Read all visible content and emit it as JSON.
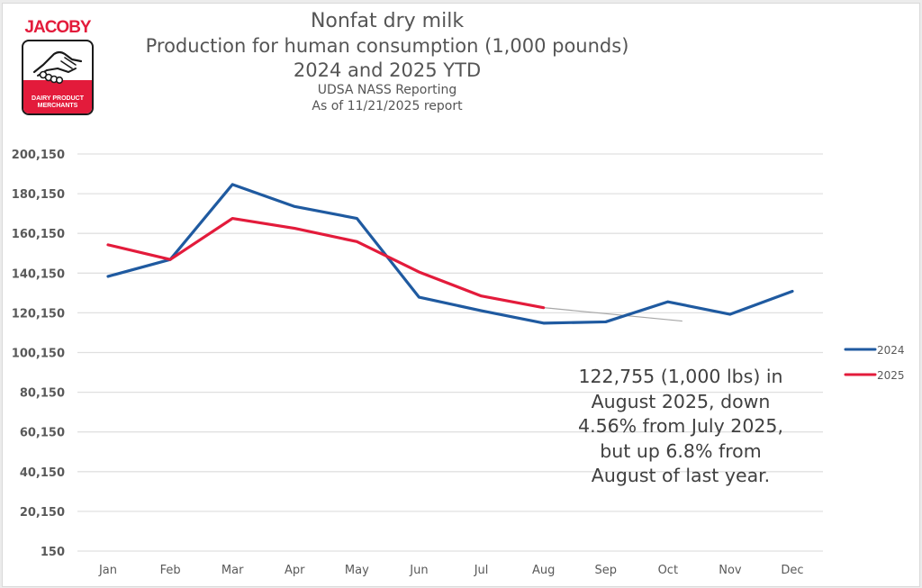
{
  "logo": {
    "brand": "JACOBY",
    "tagline_line1": "DAIRY PRODUCT",
    "tagline_line2": "MERCHANTS",
    "icon": "handshake-icon"
  },
  "colors": {
    "series_2024": "#1f5aa0",
    "series_2025": "#e31b3b",
    "trendline": "#a6a6a6",
    "gridline": "#e0e0e0",
    "text": "#595959"
  },
  "chart_data": {
    "type": "line",
    "title": "Nonfat dry milk",
    "subtitle_lines": [
      "Production for human consumption (1,000 pounds)",
      "2024 and 2025 YTD",
      "UDSA NASS Reporting",
      "As of 11/21/2025 report"
    ],
    "xlabel": "",
    "ylabel": "",
    "categories": [
      "Jan",
      "Feb",
      "Mar",
      "Apr",
      "May",
      "Jun",
      "Jul",
      "Aug",
      "Sep",
      "Oct",
      "Nov",
      "Dec"
    ],
    "series": [
      {
        "name": "2024",
        "color": "#1f5aa0",
        "values": [
          138500,
          147000,
          184800,
          173700,
          167700,
          128000,
          121200,
          114950,
          115600,
          125700,
          119400,
          131000
        ]
      },
      {
        "name": "2025",
        "color": "#e31b3b",
        "values": [
          154400,
          147000,
          167700,
          162700,
          156000,
          140700,
          128620,
          122755,
          null,
          null,
          null,
          null
        ]
      }
    ],
    "trendline": {
      "series": "2025",
      "from_category": "Aug",
      "to_category": "Oct",
      "values": [
        122755,
        116000
      ],
      "color": "#a6a6a6"
    },
    "yticks": [
      "150",
      "20,150",
      "40,150",
      "60,150",
      "80,150",
      "100,150",
      "120,150",
      "140,150",
      "160,150",
      "180,150",
      "200,150"
    ],
    "ytick_values": [
      150,
      20150,
      40150,
      60150,
      80150,
      100150,
      120150,
      140150,
      160150,
      180150,
      200150
    ],
    "ylim": [
      150,
      200150
    ],
    "grid": true,
    "legend": {
      "placement": "right",
      "entries": [
        "2024",
        "2025"
      ]
    },
    "annotation": {
      "lines": [
        "122,755 (1,000 lbs) in",
        "August 2025, down",
        "4.56% from July 2025,",
        "but up 6.8% from",
        "August of last year."
      ],
      "placement": "bottom-right"
    }
  }
}
